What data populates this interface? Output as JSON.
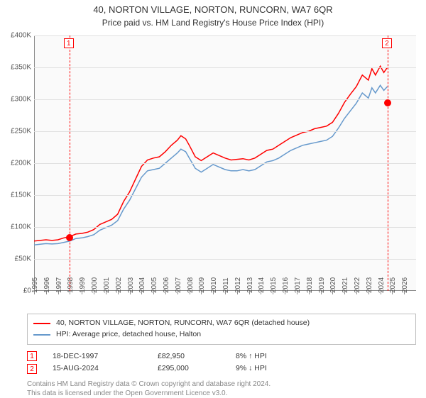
{
  "title": "40, NORTON VILLAGE, NORTON, RUNCORN, WA7 6QR",
  "subtitle": "Price paid vs. HM Land Registry's House Price Index (HPI)",
  "chart": {
    "type": "line",
    "xlim": [
      1995,
      2027
    ],
    "ylim": [
      0,
      400000
    ],
    "background_color": "#fafafa",
    "grid_color": "#e0e0e0",
    "axis_color": "#8d8d8d",
    "text_color": "#555555",
    "label_fontsize": 10,
    "xticks": [
      1995,
      1996,
      1997,
      1998,
      1999,
      2000,
      2001,
      2002,
      2003,
      2004,
      2005,
      2006,
      2007,
      2008,
      2009,
      2010,
      2011,
      2012,
      2013,
      2014,
      2015,
      2016,
      2017,
      2018,
      2019,
      2020,
      2021,
      2022,
      2023,
      2024,
      2025,
      2026
    ],
    "yticks": [
      {
        "v": 0,
        "label": "£0"
      },
      {
        "v": 50000,
        "label": "£50K"
      },
      {
        "v": 100000,
        "label": "£100K"
      },
      {
        "v": 150000,
        "label": "£150K"
      },
      {
        "v": 200000,
        "label": "£200K"
      },
      {
        "v": 250000,
        "label": "£250K"
      },
      {
        "v": 300000,
        "label": "£300K"
      },
      {
        "v": 350000,
        "label": "£350K"
      },
      {
        "v": 400000,
        "label": "£400K"
      }
    ],
    "series": [
      {
        "name": "40, NORTON VILLAGE, NORTON, RUNCORN, WA7 6QR (detached house)",
        "color": "#ff0000",
        "line_width": 1.5,
        "data": [
          [
            1995.0,
            78000
          ],
          [
            1995.5,
            79000
          ],
          [
            1996.0,
            80000
          ],
          [
            1996.5,
            79000
          ],
          [
            1997.0,
            80000
          ],
          [
            1997.5,
            83000
          ],
          [
            1998.0,
            85000
          ],
          [
            1998.5,
            89000
          ],
          [
            1999.0,
            90000
          ],
          [
            1999.5,
            92000
          ],
          [
            2000.0,
            96000
          ],
          [
            2000.5,
            104000
          ],
          [
            2001.0,
            108000
          ],
          [
            2001.5,
            112000
          ],
          [
            2002.0,
            120000
          ],
          [
            2002.5,
            140000
          ],
          [
            2003.0,
            155000
          ],
          [
            2003.5,
            175000
          ],
          [
            2004.0,
            195000
          ],
          [
            2004.5,
            205000
          ],
          [
            2005.0,
            208000
          ],
          [
            2005.5,
            210000
          ],
          [
            2006.0,
            218000
          ],
          [
            2006.5,
            228000
          ],
          [
            2007.0,
            236000
          ],
          [
            2007.3,
            243000
          ],
          [
            2007.7,
            238000
          ],
          [
            2008.0,
            228000
          ],
          [
            2008.5,
            210000
          ],
          [
            2009.0,
            204000
          ],
          [
            2009.5,
            210000
          ],
          [
            2010.0,
            216000
          ],
          [
            2010.5,
            212000
          ],
          [
            2011.0,
            208000
          ],
          [
            2011.5,
            205000
          ],
          [
            2012.0,
            206000
          ],
          [
            2012.5,
            207000
          ],
          [
            2013.0,
            205000
          ],
          [
            2013.5,
            208000
          ],
          [
            2014.0,
            214000
          ],
          [
            2014.5,
            220000
          ],
          [
            2015.0,
            222000
          ],
          [
            2015.5,
            228000
          ],
          [
            2016.0,
            234000
          ],
          [
            2016.5,
            240000
          ],
          [
            2017.0,
            244000
          ],
          [
            2017.5,
            248000
          ],
          [
            2018.0,
            250000
          ],
          [
            2018.5,
            254000
          ],
          [
            2019.0,
            256000
          ],
          [
            2019.5,
            258000
          ],
          [
            2020.0,
            264000
          ],
          [
            2020.5,
            278000
          ],
          [
            2021.0,
            295000
          ],
          [
            2021.5,
            308000
          ],
          [
            2022.0,
            320000
          ],
          [
            2022.5,
            338000
          ],
          [
            2023.0,
            330000
          ],
          [
            2023.3,
            348000
          ],
          [
            2023.6,
            338000
          ],
          [
            2024.0,
            352000
          ],
          [
            2024.3,
            342000
          ],
          [
            2024.6,
            350000
          ]
        ]
      },
      {
        "name": "HPI: Average price, detached house, Halton",
        "color": "#6699cc",
        "line_width": 1.5,
        "data": [
          [
            1995.0,
            72000
          ],
          [
            1995.5,
            73000
          ],
          [
            1996.0,
            74000
          ],
          [
            1996.5,
            73500
          ],
          [
            1997.0,
            74000
          ],
          [
            1997.5,
            76000
          ],
          [
            1998.0,
            78000
          ],
          [
            1998.5,
            82000
          ],
          [
            1999.0,
            83000
          ],
          [
            1999.5,
            85000
          ],
          [
            2000.0,
            88000
          ],
          [
            2000.5,
            95000
          ],
          [
            2001.0,
            99000
          ],
          [
            2001.5,
            103000
          ],
          [
            2002.0,
            110000
          ],
          [
            2002.5,
            128000
          ],
          [
            2003.0,
            142000
          ],
          [
            2003.5,
            160000
          ],
          [
            2004.0,
            178000
          ],
          [
            2004.5,
            188000
          ],
          [
            2005.0,
            190000
          ],
          [
            2005.5,
            192000
          ],
          [
            2006.0,
            200000
          ],
          [
            2006.5,
            208000
          ],
          [
            2007.0,
            216000
          ],
          [
            2007.3,
            222000
          ],
          [
            2007.7,
            218000
          ],
          [
            2008.0,
            208000
          ],
          [
            2008.5,
            192000
          ],
          [
            2009.0,
            186000
          ],
          [
            2009.5,
            192000
          ],
          [
            2010.0,
            198000
          ],
          [
            2010.5,
            194000
          ],
          [
            2011.0,
            190000
          ],
          [
            2011.5,
            188000
          ],
          [
            2012.0,
            188000
          ],
          [
            2012.5,
            190000
          ],
          [
            2013.0,
            188000
          ],
          [
            2013.5,
            190000
          ],
          [
            2014.0,
            196000
          ],
          [
            2014.5,
            202000
          ],
          [
            2015.0,
            204000
          ],
          [
            2015.5,
            208000
          ],
          [
            2016.0,
            214000
          ],
          [
            2016.5,
            220000
          ],
          [
            2017.0,
            224000
          ],
          [
            2017.5,
            228000
          ],
          [
            2018.0,
            230000
          ],
          [
            2018.5,
            232000
          ],
          [
            2019.0,
            234000
          ],
          [
            2019.5,
            236000
          ],
          [
            2020.0,
            242000
          ],
          [
            2020.5,
            255000
          ],
          [
            2021.0,
            270000
          ],
          [
            2021.5,
            282000
          ],
          [
            2022.0,
            294000
          ],
          [
            2022.5,
            310000
          ],
          [
            2023.0,
            302000
          ],
          [
            2023.3,
            318000
          ],
          [
            2023.6,
            310000
          ],
          [
            2024.0,
            322000
          ],
          [
            2024.3,
            314000
          ],
          [
            2024.6,
            320000
          ]
        ]
      }
    ],
    "markers": [
      {
        "idx": 1,
        "x": 1997.96,
        "y": 82950
      },
      {
        "idx": 2,
        "x": 2024.62,
        "y": 295000
      }
    ],
    "marker_color": "#ff0000"
  },
  "legend_items": [
    {
      "color": "#ff0000",
      "label": "40, NORTON VILLAGE, NORTON, RUNCORN, WA7 6QR (detached house)"
    },
    {
      "color": "#6699cc",
      "label": "HPI: Average price, detached house, Halton"
    }
  ],
  "price_points": [
    {
      "idx": "1",
      "date": "18-DEC-1997",
      "price": "£82,950",
      "pct": "8% ↑ HPI"
    },
    {
      "idx": "2",
      "date": "15-AUG-2024",
      "price": "£295,000",
      "pct": "9% ↓ HPI"
    }
  ],
  "footer1": "Contains HM Land Registry data © Crown copyright and database right 2024.",
  "footer2": "This data is licensed under the Open Government Licence v3.0."
}
